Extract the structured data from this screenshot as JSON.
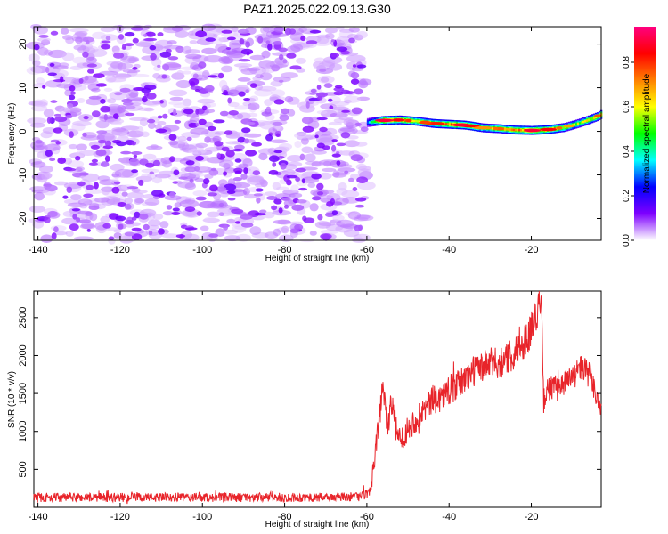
{
  "title": "PAZ1.2025.022.09.13.G30",
  "chart_data": [
    {
      "type": "heatmap",
      "xlabel": "Height of straight line (km)",
      "ylabel": "Frequency (Hz)",
      "xlim": [
        -141,
        -3
      ],
      "ylim": [
        -25,
        24
      ],
      "xticks": [
        -140,
        -120,
        -100,
        -80,
        -60,
        -40,
        -20
      ],
      "yticks": [
        -20,
        -10,
        0,
        10,
        20
      ],
      "colorbar": {
        "label": "Normalized spectral amplitude",
        "range": [
          0,
          0.96
        ],
        "ticks": [
          0.0,
          0.2,
          0.4,
          0.6,
          0.8
        ],
        "tick_labels": [
          "0.0",
          "0.2",
          "0.4",
          "0.6",
          "0.8"
        ],
        "colormap": [
          "#ffffff",
          "#7e00ff",
          "#0000ff",
          "#00ffff",
          "#00ff00",
          "#ffff00",
          "#ff8000",
          "#ff0000",
          "#ff0080"
        ]
      },
      "noise_region": {
        "x": [
          -141,
          -60
        ],
        "y": [
          -25,
          24
        ],
        "amplitude": [
          0.02,
          0.14
        ]
      },
      "signal_ridge": {
        "x": [
          -60,
          -56,
          -52,
          -48,
          -44,
          -40,
          -36,
          -32,
          -28,
          -24,
          -20,
          -16,
          -12,
          -8,
          -4,
          -3
        ],
        "frequency": [
          2.0,
          2.5,
          2.6,
          2.3,
          1.8,
          1.6,
          1.4,
          0.8,
          0.6,
          0.3,
          0.2,
          0.4,
          0.9,
          2.0,
          3.4,
          4.0
        ],
        "peak_amplitude": [
          0.35,
          0.9,
          0.85,
          0.75,
          0.8,
          0.85,
          0.9,
          0.7,
          0.75,
          0.8,
          0.9,
          0.85,
          0.7,
          0.65,
          0.75,
          0.8
        ]
      }
    },
    {
      "type": "line",
      "xlabel": "Height of straight line (km)",
      "ylabel": "SNR (10 * v/v)",
      "xlim": [
        -141,
        -3
      ],
      "ylim": [
        0,
        2850
      ],
      "xticks": [
        -140,
        -120,
        -100,
        -80,
        -60,
        -40,
        -20
      ],
      "yticks": [
        500,
        1000,
        1500,
        2000,
        2500
      ],
      "color": "#e8242a",
      "series": [
        {
          "x": [
            -141,
            -130,
            -120,
            -110,
            -100,
            -90,
            -80,
            -70,
            -62,
            -59,
            -58,
            -57,
            -56,
            -55,
            -54,
            -53,
            -52,
            -50,
            -48,
            -46,
            -44,
            -42,
            -40,
            -38,
            -36,
            -34,
            -32,
            -30,
            -28,
            -26,
            -24,
            -22,
            -20,
            -19,
            -18,
            -17.5,
            -17,
            -16,
            -14,
            -12,
            -10,
            -8,
            -6,
            -4,
            -3
          ],
          "values": [
            130,
            130,
            130,
            130,
            130,
            130,
            130,
            130,
            140,
            190,
            700,
            1150,
            1650,
            1050,
            1400,
            1050,
            850,
            1050,
            1150,
            1300,
            1400,
            1450,
            1550,
            1600,
            1700,
            1800,
            1850,
            1900,
            1900,
            1950,
            2050,
            2150,
            2350,
            2500,
            2700,
            2550,
            1400,
            1550,
            1580,
            1650,
            1700,
            1850,
            1750,
            1450,
            1300
          ],
          "noise_amplitude": [
            60,
            60,
            60,
            60,
            60,
            60,
            60,
            60,
            60,
            80,
            120,
            200,
            220,
            200,
            180,
            180,
            160,
            170,
            170,
            180,
            190,
            190,
            200,
            200,
            200,
            210,
            210,
            210,
            210,
            220,
            220,
            220,
            230,
            230,
            230,
            220,
            160,
            170,
            170,
            170,
            170,
            180,
            180,
            160,
            160
          ]
        }
      ]
    }
  ]
}
